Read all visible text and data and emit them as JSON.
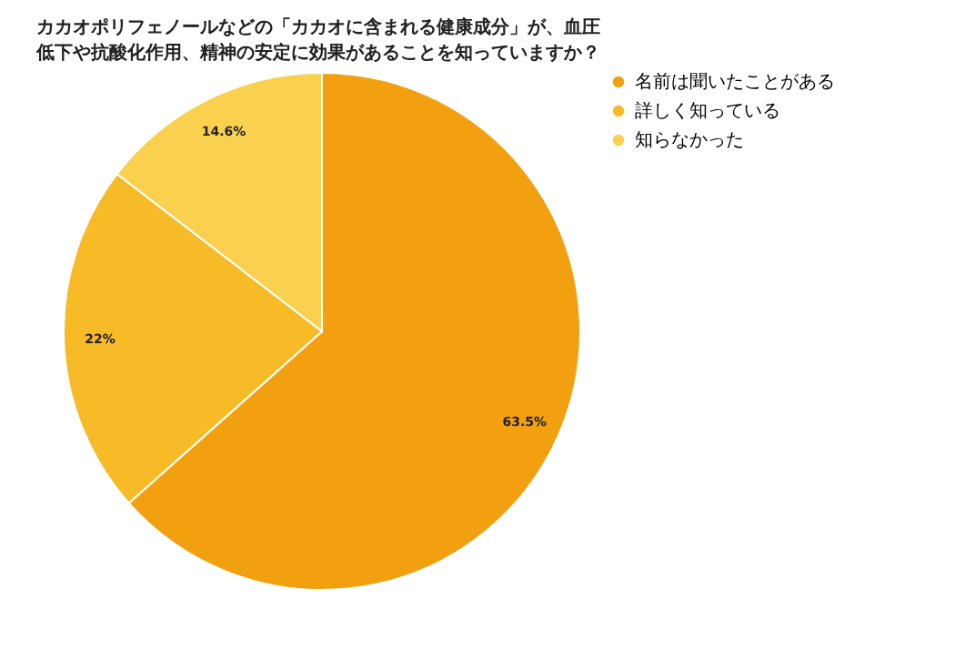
{
  "chart_data": {
    "type": "pie",
    "title": "カカオポリフェノールなどの「カカオに含まれる健康成分」が、血圧低下や抗酸化作用、精神の安定に効果があることを知っていますか？",
    "categories": [
      "名前は聞いたことがある",
      "詳しく知っている",
      "知らなかった"
    ],
    "values": [
      63.5,
      22,
      14.6
    ],
    "value_labels": [
      "63.5%",
      "22%",
      "14.6%"
    ],
    "colors": [
      "#f2a00f",
      "#f6bb27",
      "#f9d14f"
    ],
    "legend": "top right"
  }
}
